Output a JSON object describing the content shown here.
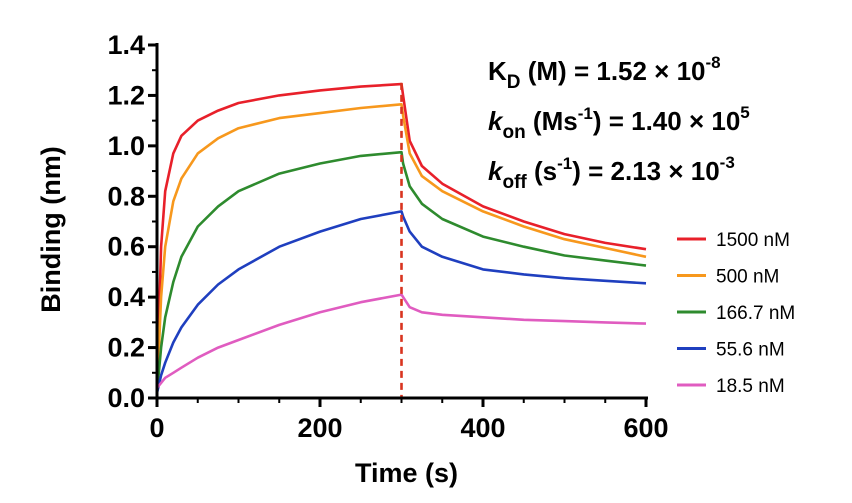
{
  "chart_data": {
    "type": "line",
    "xlabel": "Time (s)",
    "ylabel": "Binding (nm)",
    "xlim": [
      0,
      600
    ],
    "ylim": [
      0,
      1.4
    ],
    "xticks": [
      0,
      200,
      400,
      600
    ],
    "xtick_labels": [
      "0",
      "200",
      "400",
      "600"
    ],
    "yticks": [
      0,
      0.2,
      0.4,
      0.6,
      0.8,
      1.0,
      1.2,
      1.4
    ],
    "ytick_labels": [
      "0.0",
      "0.2",
      "0.4",
      "0.6",
      "0.8",
      "1.0",
      "1.2",
      "1.4"
    ],
    "dissociation_start": 300,
    "dissociation_line_color": "#d9341f",
    "legend_position": "right",
    "annotations": [
      {
        "symbol": "K",
        "subscript": "D",
        "unit_prefix": " (M)",
        "unit_sup": "",
        "unit_suffix": "",
        "equals": " = ",
        "value": "1.52 × 10",
        "exponent": "-8"
      },
      {
        "symbol": "k",
        "subscript": "on",
        "unit_prefix": " (Ms",
        "unit_sup": "-1",
        "unit_suffix": ")",
        "equals": "  = ",
        "value": "1.40 × 10",
        "exponent": "5"
      },
      {
        "symbol": "k",
        "subscript": "off",
        "unit_prefix": " (s",
        "unit_sup": "-1",
        "unit_suffix": ")",
        "equals": " = ",
        "value": "2.13 × 10",
        "exponent": "-3"
      }
    ],
    "series": [
      {
        "name": "1500 nM",
        "color": "#e8202a",
        "x": [
          0,
          5,
          10,
          20,
          30,
          50,
          75,
          100,
          150,
          200,
          250,
          300,
          302,
          310,
          325,
          350,
          400,
          450,
          500,
          550,
          600
        ],
        "y": [
          0.03,
          0.6,
          0.82,
          0.97,
          1.04,
          1.1,
          1.14,
          1.17,
          1.2,
          1.22,
          1.235,
          1.245,
          1.2,
          1.02,
          0.92,
          0.85,
          0.76,
          0.7,
          0.65,
          0.615,
          0.59
        ]
      },
      {
        "name": "500 nM",
        "color": "#f7981d",
        "x": [
          0,
          5,
          10,
          20,
          30,
          50,
          75,
          100,
          150,
          200,
          250,
          300,
          302,
          310,
          325,
          350,
          400,
          450,
          500,
          550,
          600
        ],
        "y": [
          0.02,
          0.4,
          0.6,
          0.78,
          0.87,
          0.97,
          1.03,
          1.07,
          1.11,
          1.13,
          1.15,
          1.165,
          1.12,
          0.97,
          0.88,
          0.82,
          0.74,
          0.68,
          0.63,
          0.595,
          0.56
        ]
      },
      {
        "name": "166.7 nM",
        "color": "#2e8b2e",
        "x": [
          0,
          5,
          10,
          20,
          30,
          50,
          75,
          100,
          150,
          200,
          250,
          300,
          302,
          310,
          325,
          350,
          400,
          450,
          500,
          550,
          600
        ],
        "y": [
          0.02,
          0.2,
          0.32,
          0.46,
          0.56,
          0.68,
          0.76,
          0.82,
          0.89,
          0.93,
          0.96,
          0.975,
          0.93,
          0.84,
          0.77,
          0.71,
          0.64,
          0.6,
          0.565,
          0.545,
          0.525
        ]
      },
      {
        "name": "55.6 nM",
        "color": "#1f3fbf",
        "x": [
          0,
          5,
          10,
          20,
          30,
          50,
          75,
          100,
          150,
          200,
          250,
          300,
          302,
          310,
          325,
          350,
          400,
          450,
          500,
          550,
          600
        ],
        "y": [
          0.02,
          0.09,
          0.14,
          0.22,
          0.28,
          0.37,
          0.45,
          0.51,
          0.6,
          0.66,
          0.71,
          0.74,
          0.72,
          0.66,
          0.6,
          0.56,
          0.51,
          0.49,
          0.475,
          0.465,
          0.455
        ]
      },
      {
        "name": "18.5 nM",
        "color": "#e05cc0",
        "x": [
          0,
          5,
          10,
          20,
          30,
          50,
          75,
          100,
          150,
          200,
          250,
          300,
          302,
          310,
          325,
          350,
          400,
          450,
          500,
          550,
          600
        ],
        "y": [
          0.04,
          0.06,
          0.08,
          0.1,
          0.12,
          0.16,
          0.2,
          0.23,
          0.29,
          0.34,
          0.38,
          0.41,
          0.4,
          0.36,
          0.34,
          0.33,
          0.32,
          0.31,
          0.305,
          0.3,
          0.295
        ]
      }
    ]
  }
}
